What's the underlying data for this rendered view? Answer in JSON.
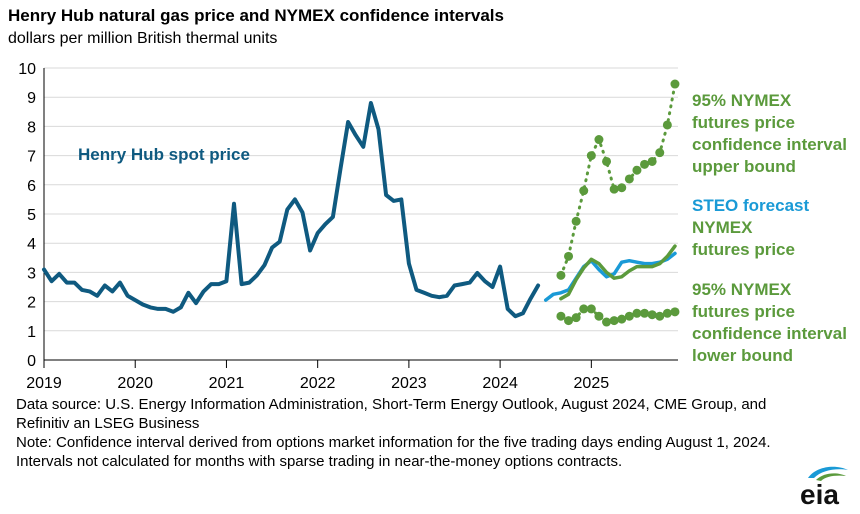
{
  "colors": {
    "spot": "#0f5a80",
    "steo": "#1a9ad6",
    "nymex": "#5b9a3c",
    "grid": "#d9d9d9",
    "axis": "#000000"
  },
  "icons": {
    "logo": "eia-logo-icon"
  },
  "footer": {
    "source": "Data source: U.S. Energy Information Administration, Short-Term Energy Outlook, August 2024, CME Group, and Refinitiv an LSEG Business",
    "note": "Note: Confidence interval derived from options market information for the five trading days ending August 1, 2024. Intervals not calculated for months with sparse trading in near-the-money options contracts.",
    "logo_text": "eia"
  },
  "chart_data": {
    "type": "line",
    "title": "Henry Hub natural gas price and NYMEX confidence intervals",
    "subtitle": "dollars per million British thermal units",
    "x_unit": "year",
    "ylim": [
      0,
      10
    ],
    "yticks": [
      0,
      1,
      2,
      3,
      4,
      5,
      6,
      7,
      8,
      9,
      10
    ],
    "xlim": [
      2019,
      2025.95
    ],
    "xticks": [
      "2019",
      "2020",
      "2021",
      "2022",
      "2023",
      "2024",
      "2025"
    ],
    "grid": "horizontal",
    "legend": "direct labels, right side",
    "series": [
      {
        "name": "Henry Hub spot price",
        "key": "spot",
        "marker": "none",
        "start": "2019-01",
        "values": [
          3.1,
          2.7,
          2.95,
          2.65,
          2.65,
          2.4,
          2.35,
          2.2,
          2.55,
          2.35,
          2.65,
          2.2,
          2.05,
          1.9,
          1.8,
          1.75,
          1.75,
          1.65,
          1.8,
          2.3,
          1.95,
          2.35,
          2.6,
          2.6,
          2.7,
          5.35,
          2.6,
          2.65,
          2.9,
          3.25,
          3.85,
          4.05,
          5.15,
          5.5,
          5.05,
          3.75,
          4.35,
          4.65,
          4.9,
          6.55,
          8.15,
          7.7,
          7.3,
          8.8,
          7.9,
          5.65,
          5.45,
          5.5,
          3.3,
          2.4,
          2.3,
          2.2,
          2.15,
          2.2,
          2.55,
          2.6,
          2.65,
          2.98,
          2.7,
          2.5,
          3.2,
          1.75,
          1.5,
          1.6,
          2.1,
          2.55
        ]
      },
      {
        "name": "STEO forecast",
        "key": "steo",
        "marker": "none",
        "start": "2024-07",
        "values": [
          2.05,
          2.25,
          2.3,
          2.4,
          2.8,
          3.2,
          3.4,
          3.1,
          2.85,
          2.95,
          3.35,
          3.4,
          3.35,
          3.3,
          3.3,
          3.35,
          3.45,
          3.65
        ]
      },
      {
        "name": "NYMEX futures price",
        "key": "nymex",
        "marker": "none",
        "start": "2024-09",
        "values": [
          2.1,
          2.25,
          2.75,
          3.15,
          3.45,
          3.3,
          3.0,
          2.8,
          2.85,
          3.05,
          3.2,
          3.2,
          3.2,
          3.3,
          3.55,
          3.9
        ]
      },
      {
        "name": "95% NYMEX futures price confidence interval upper bound",
        "key": "nymex",
        "marker": "dot",
        "points": [
          {
            "x": "2024-09",
            "y": 2.9
          },
          {
            "x": "2024-10",
            "y": 3.55
          },
          {
            "x": "2024-11",
            "y": 4.75
          },
          {
            "x": "2024-12",
            "y": 5.8
          },
          {
            "x": "2025-01",
            "y": 7.0
          },
          {
            "x": "2025-02",
            "y": 7.55
          },
          {
            "x": "2025-03",
            "y": 6.8
          },
          {
            "x": "2025-04",
            "y": 5.85
          },
          {
            "x": "2025-05",
            "y": 5.9
          },
          {
            "x": "2025-06",
            "y": 6.2
          },
          {
            "x": "2025-07",
            "y": 6.5
          },
          {
            "x": "2025-08",
            "y": 6.7
          },
          {
            "x": "2025-09",
            "y": 6.8
          },
          {
            "x": "2025-10",
            "y": 7.1
          },
          {
            "x": "2025-11",
            "y": 8.05
          },
          {
            "x": "2025-12",
            "y": 9.45
          }
        ]
      },
      {
        "name": "95% NYMEX futures price confidence interval lower bound",
        "key": "nymex",
        "marker": "dot",
        "points": [
          {
            "x": "2024-09",
            "y": 1.5
          },
          {
            "x": "2024-10",
            "y": 1.35
          },
          {
            "x": "2024-11",
            "y": 1.45
          },
          {
            "x": "2024-12",
            "y": 1.75
          },
          {
            "x": "2025-01",
            "y": 1.75
          },
          {
            "x": "2025-02",
            "y": 1.5
          },
          {
            "x": "2025-03",
            "y": 1.3
          },
          {
            "x": "2025-04",
            "y": 1.35
          },
          {
            "x": "2025-05",
            "y": 1.4
          },
          {
            "x": "2025-06",
            "y": 1.5
          },
          {
            "x": "2025-07",
            "y": 1.6
          },
          {
            "x": "2025-08",
            "y": 1.6
          },
          {
            "x": "2025-09",
            "y": 1.55
          },
          {
            "x": "2025-10",
            "y": 1.5
          },
          {
            "x": "2025-11",
            "y": 1.6
          },
          {
            "x": "2025-12",
            "y": 1.65
          }
        ]
      }
    ],
    "annotations": [
      {
        "key": "spot",
        "text": "Henry Hub spot price",
        "lines": [
          "Henry Hub spot price"
        ]
      },
      {
        "key": "nymex",
        "text": "95% NYMEX futures price confidence interval upper bound",
        "lines": [
          "95% NYMEX",
          "futures price",
          "confidence interval",
          "upper bound"
        ]
      },
      {
        "key": "steo",
        "text": "STEO forecast",
        "lines": [
          "STEO forecast"
        ]
      },
      {
        "key": "nymex",
        "text": "NYMEX futures price",
        "lines": [
          "NYMEX",
          "futures price"
        ]
      },
      {
        "key": "nymex",
        "text": "95% NYMEX futures price confidence interval lower bound",
        "lines": [
          "95% NYMEX",
          "futures price",
          "confidence interval",
          "lower bound"
        ]
      }
    ]
  }
}
